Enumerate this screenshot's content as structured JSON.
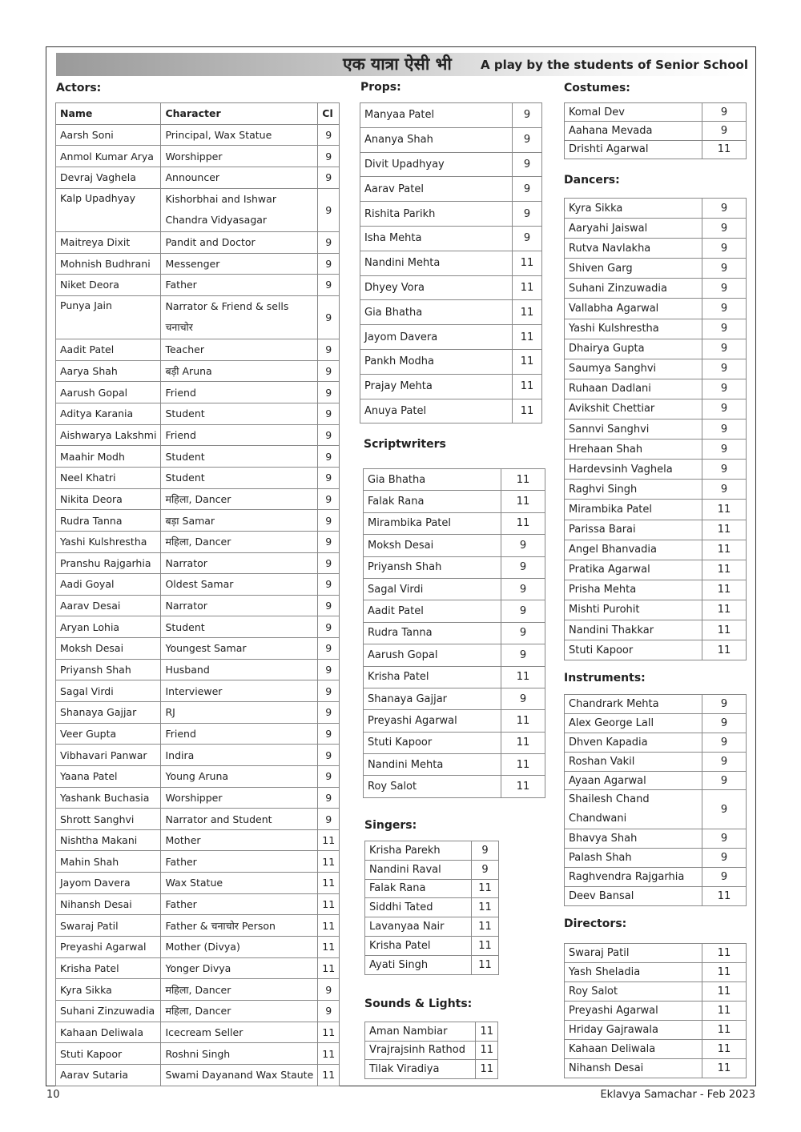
{
  "header": {
    "hindi_title": "एक यात्रा ऐसी भी",
    "subtitle": "A play by the students of Senior School"
  },
  "actors": {
    "heading": "Actors:",
    "columns": [
      "Name",
      "Character",
      "Cl"
    ],
    "rows": [
      [
        "Aarsh Soni",
        "Principal, Wax Statue",
        "9"
      ],
      [
        "Anmol Kumar Arya",
        "Worshipper",
        "9"
      ],
      [
        "Devraj Vaghela",
        "Announcer",
        "9"
      ],
      [
        "Kalp Upadhyay",
        "Kishorbhai and Ishwar Chandra Vidyasagar",
        "9"
      ],
      [
        "Maitreya Dixit",
        "Pandit and Doctor",
        "9"
      ],
      [
        "Mohnish Budhrani",
        "Messenger",
        "9"
      ],
      [
        "Niket Deora",
        "Father",
        "9"
      ],
      [
        "Punya Jain",
        "Narrator & Friend & sells चनाचोर",
        "9"
      ],
      [
        "Aadit Patel",
        "Teacher",
        "9"
      ],
      [
        "Aarya Shah",
        "बड़ी Aruna",
        "9"
      ],
      [
        "Aarush Gopal",
        "Friend",
        "9"
      ],
      [
        "Aditya Karania",
        "Student",
        "9"
      ],
      [
        "Aishwarya Lakshmi",
        "Friend",
        "9"
      ],
      [
        "Maahir Modh",
        "Student",
        "9"
      ],
      [
        "Neel Khatri",
        "Student",
        "9"
      ],
      [
        "Nikita Deora",
        "महिला, Dancer",
        "9"
      ],
      [
        "Rudra Tanna",
        "बड़ा Samar",
        "9"
      ],
      [
        "Yashi Kulshrestha",
        "महिला, Dancer",
        "9"
      ],
      [
        "Pranshu Rajgarhia",
        "Narrator",
        "9"
      ],
      [
        "Aadi Goyal",
        "Oldest Samar",
        "9"
      ],
      [
        "Aarav Desai",
        "Narrator",
        "9"
      ],
      [
        "Aryan Lohia",
        "Student",
        "9"
      ],
      [
        "Moksh Desai",
        "Youngest Samar",
        "9"
      ],
      [
        "Priyansh Shah",
        "Husband",
        "9"
      ],
      [
        "Sagal Virdi",
        "Interviewer",
        "9"
      ],
      [
        "Shanaya Gajjar",
        "RJ",
        "9"
      ],
      [
        "Veer Gupta",
        "Friend",
        "9"
      ],
      [
        "Vibhavari Panwar",
        "Indira",
        "9"
      ],
      [
        "Yaana Patel",
        "Young Aruna",
        "9"
      ],
      [
        "Yashank Buchasia",
        "Worshipper",
        "9"
      ],
      [
        "Shrott Sanghvi",
        "Narrator and Student",
        "9"
      ],
      [
        "Nishtha Makani",
        "Mother",
        "11"
      ],
      [
        "Mahin Shah",
        "Father",
        "11"
      ],
      [
        "Jayom Davera",
        "Wax Statue",
        "11"
      ],
      [
        "Nihansh Desai",
        "Father",
        "11"
      ],
      [
        "Swaraj Patil",
        "Father & चनाचोर Person",
        "11"
      ],
      [
        "Preyashi Agarwal",
        "Mother (Divya)",
        "11"
      ],
      [
        "Krisha Patel",
        "Yonger Divya",
        "11"
      ],
      [
        "Kyra Sikka",
        "महिला, Dancer",
        "9"
      ],
      [
        "Suhani Zinzuwadia",
        "महिला, Dancer",
        "9"
      ],
      [
        "Kahaan Deliwala",
        "Icecream Seller",
        "11"
      ],
      [
        "Stuti Kapoor",
        "Roshni Singh",
        "11"
      ],
      [
        "Aarav Sutaria",
        "Swami Dayanand Wax Staute",
        "11"
      ]
    ]
  },
  "props": {
    "heading": "Props:",
    "rows": [
      [
        "Manyaa Patel",
        "9"
      ],
      [
        "Ananya Shah",
        "9"
      ],
      [
        "Divit Upadhyay",
        "9"
      ],
      [
        "Aarav Patel",
        "9"
      ],
      [
        "Rishita Parikh",
        "9"
      ],
      [
        "Isha Mehta",
        "9"
      ],
      [
        "Nandini Mehta",
        "11"
      ],
      [
        "Dhyey Vora",
        "11"
      ],
      [
        "Gia Bhatha",
        "11"
      ],
      [
        "Jayom Davera",
        "11"
      ],
      [
        "Pankh Modha",
        "11"
      ],
      [
        "Prajay Mehta",
        "11"
      ],
      [
        "Anuya Patel",
        "11"
      ]
    ]
  },
  "scriptwriters": {
    "heading": "Scriptwriters",
    "rows": [
      [
        "Gia Bhatha",
        "11"
      ],
      [
        "Falak Rana",
        "11"
      ],
      [
        "Mirambika Patel",
        "11"
      ],
      [
        "Moksh Desai",
        "9"
      ],
      [
        "Priyansh Shah",
        "9"
      ],
      [
        "Sagal Virdi",
        "9"
      ],
      [
        "Aadit Patel",
        "9"
      ],
      [
        "Rudra Tanna",
        "9"
      ],
      [
        "Aarush Gopal",
        "9"
      ],
      [
        "Krisha Patel",
        "11"
      ],
      [
        "Shanaya Gajjar",
        "9"
      ],
      [
        "Preyashi Agarwal",
        "11"
      ],
      [
        "Stuti Kapoor",
        "11"
      ],
      [
        "Nandini Mehta",
        "11"
      ],
      [
        "Roy Salot",
        "11"
      ]
    ]
  },
  "singers": {
    "heading": "Singers:",
    "rows": [
      [
        "Krisha Parekh",
        "9"
      ],
      [
        "Nandini Raval",
        "9"
      ],
      [
        "Falak Rana",
        "11"
      ],
      [
        "Siddhi Tated",
        "11"
      ],
      [
        "Lavanyaa Nair",
        "11"
      ],
      [
        "Krisha Patel",
        "11"
      ],
      [
        "Ayati Singh",
        "11"
      ]
    ]
  },
  "sounds": {
    "heading": "Sounds & Lights:",
    "rows": [
      [
        "Aman Nambiar",
        "11"
      ],
      [
        "Vrajrajsinh Rathod",
        "11"
      ],
      [
        "Tilak Viradiya",
        "11"
      ]
    ]
  },
  "costumes": {
    "heading": "Costumes:",
    "rows": [
      [
        "Komal Dev",
        "9"
      ],
      [
        "Aahana Mevada",
        "9"
      ],
      [
        "Drishti Agarwal",
        "11"
      ]
    ]
  },
  "dancers": {
    "heading": "Dancers:",
    "rows": [
      [
        "Kyra Sikka",
        "9"
      ],
      [
        "Aaryahi Jaiswal",
        "9"
      ],
      [
        "Rutva Navlakha",
        "9"
      ],
      [
        "Shiven Garg",
        "9"
      ],
      [
        "Suhani Zinzuwadia",
        "9"
      ],
      [
        "Vallabha Agarwal",
        "9"
      ],
      [
        "Yashi Kulshrestha",
        "9"
      ],
      [
        "Dhairya Gupta",
        "9"
      ],
      [
        "Saumya Sanghvi",
        "9"
      ],
      [
        "Ruhaan Dadlani",
        "9"
      ],
      [
        "Avikshit Chettiar",
        "9"
      ],
      [
        "Sannvi Sanghvi",
        "9"
      ],
      [
        "Hrehaan Shah",
        "9"
      ],
      [
        "Hardevsinh Vaghela",
        "9"
      ],
      [
        "Raghvi Singh",
        "9"
      ],
      [
        "Mirambika Patel",
        "11"
      ],
      [
        "Parissa Barai",
        "11"
      ],
      [
        "Angel Bhanvadia",
        "11"
      ],
      [
        "Pratika Agarwal",
        "11"
      ],
      [
        "Prisha Mehta",
        "11"
      ],
      [
        "Mishti Purohit",
        "11"
      ],
      [
        "Nandini Thakkar",
        "11"
      ],
      [
        "Stuti Kapoor",
        "11"
      ]
    ]
  },
  "instruments": {
    "heading": "Instruments:",
    "rows": [
      [
        "Chandrark Mehta",
        "9"
      ],
      [
        "Alex George Lall",
        "9"
      ],
      [
        "Dhven Kapadia",
        "9"
      ],
      [
        "Roshan Vakil",
        "9"
      ],
      [
        "Ayaan Agarwal",
        "9"
      ],
      [
        "Shailesh Chand Chandwani",
        "9"
      ],
      [
        "Bhavya Shah",
        "9"
      ],
      [
        "Palash Shah",
        "9"
      ],
      [
        "Raghvendra Rajgarhia",
        "9"
      ],
      [
        "Deev Bansal",
        "11"
      ]
    ]
  },
  "directors": {
    "heading": "Directors:",
    "rows": [
      [
        "Swaraj Patil",
        "11"
      ],
      [
        "Yash Sheladia",
        "11"
      ],
      [
        "Roy Salot",
        "11"
      ],
      [
        "Preyashi Agarwal",
        "11"
      ],
      [
        "Hriday Gajrawala",
        "11"
      ],
      [
        "Kahaan Deliwala",
        "11"
      ],
      [
        "Nihansh Desai",
        "11"
      ]
    ]
  },
  "footer": {
    "page_number": "10",
    "publication": "Eklavya Samachar - Feb 2023"
  }
}
